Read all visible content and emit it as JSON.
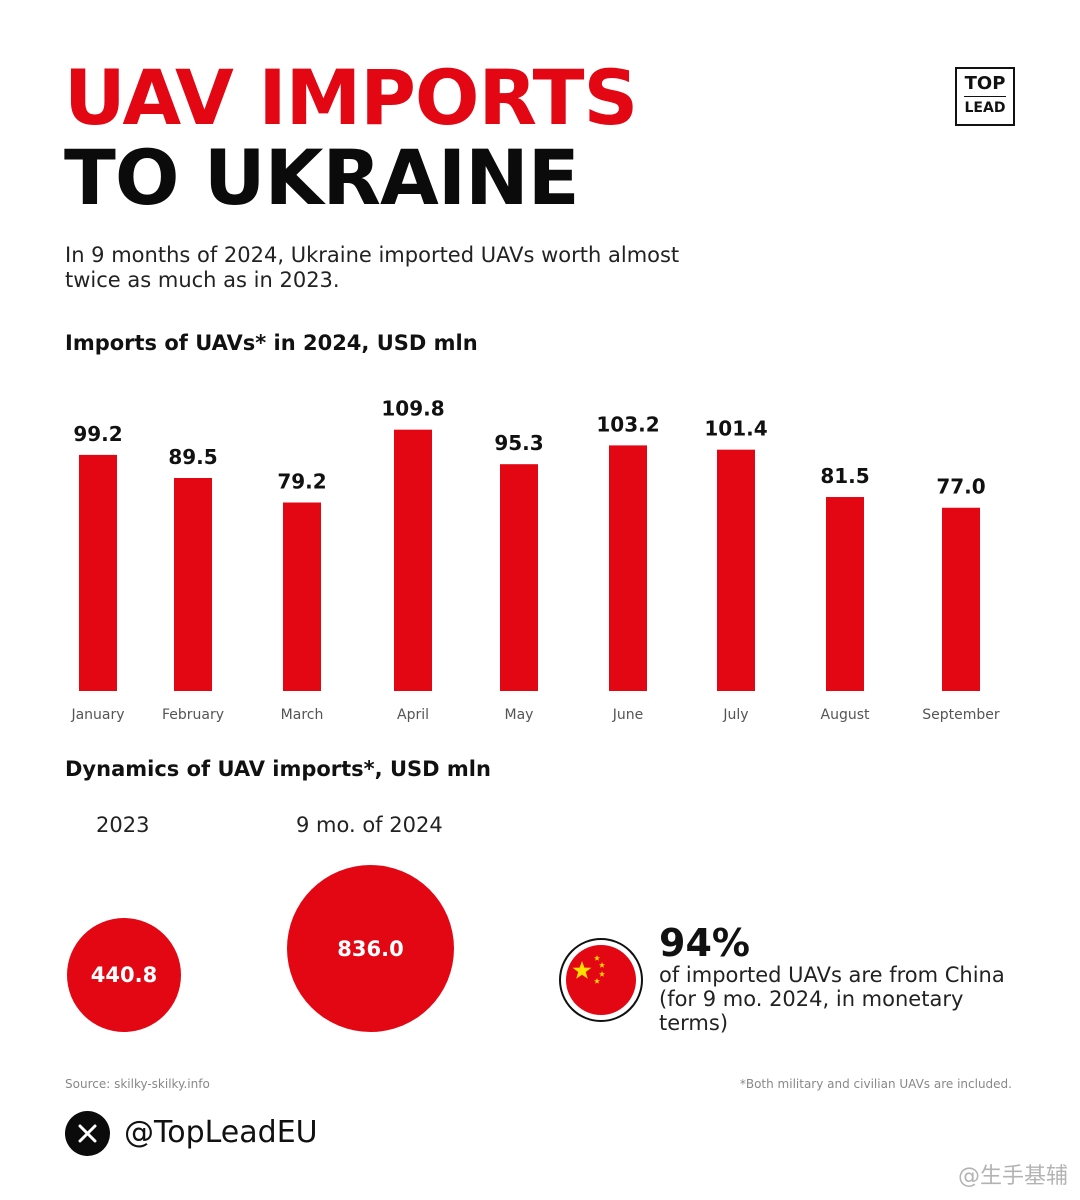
{
  "header": {
    "title_line1": "UAV IMPORTS",
    "title_line2": "TO UKRAINE",
    "logo_top": "TOP",
    "logo_bottom": "LEAD",
    "subtitle": "In 9 months of 2024, Ukraine imported UAVs worth almost twice as much as in 2023."
  },
  "colors": {
    "accent": "#e30613",
    "text": "#111111",
    "muted": "#888888"
  },
  "chart_data": [
    {
      "type": "bar",
      "title": "Imports of UAVs* in 2024, USD mln",
      "categories": [
        "January",
        "February",
        "March",
        "April",
        "May",
        "June",
        "July",
        "August",
        "September"
      ],
      "values": [
        99.2,
        89.5,
        79.2,
        109.8,
        95.3,
        103.2,
        101.4,
        81.5,
        77.0
      ],
      "value_labels": [
        "99.2",
        "89.5",
        "79.2",
        "109.8",
        "95.3",
        "103.2",
        "101.4",
        "81.5",
        "77.0"
      ],
      "xlabel": "",
      "ylabel": "",
      "grid": false,
      "color": "#e30613"
    },
    {
      "type": "bubble",
      "title": "Dynamics of UAV imports*, USD mln",
      "categories": [
        "2023",
        "9 mo. of 2024"
      ],
      "values": [
        440.8,
        836.0
      ],
      "value_labels": [
        "440.8",
        "836.0"
      ]
    }
  ],
  "dynamics": {
    "label_2023": "2023",
    "label_2024": "9 mo. of 2024",
    "value_2023": "440.8",
    "value_2024": "836.0"
  },
  "china_share": {
    "percent": "94%",
    "text": "of imported UAVs are from China (for 9 mo. 2024, in monetary terms)",
    "icon": "china-flag-icon"
  },
  "footer": {
    "source": "Source: skilky-skilky.info",
    "note": "*Both military and civilian UAVs are included.",
    "handle": "@TopLeadEU",
    "handle_icon": "x-logo-icon",
    "watermark": "@生手基辅"
  }
}
